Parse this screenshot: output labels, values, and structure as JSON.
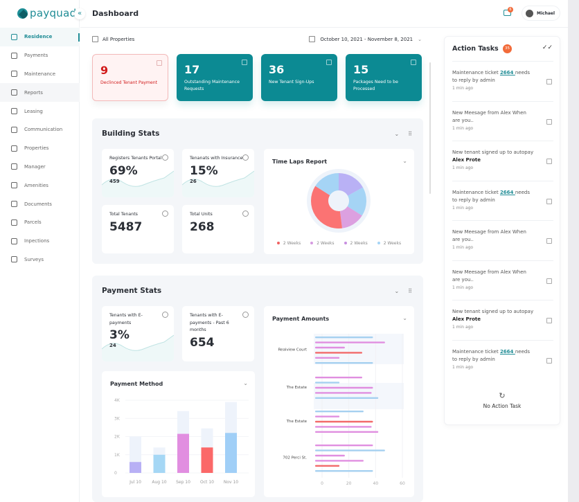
{
  "brand": {
    "name": "payquad",
    "accent": "#0c8a93"
  },
  "sidebar": {
    "items": [
      {
        "label": "Residence",
        "icon": "home-icon"
      },
      {
        "label": "Payments",
        "icon": "wallet-icon"
      },
      {
        "label": "Maintenance",
        "icon": "wrench-icon"
      },
      {
        "label": "Reports",
        "icon": "reports-icon"
      },
      {
        "label": "Leasing",
        "icon": "leasing-icon"
      },
      {
        "label": "Communication",
        "icon": "headset-icon"
      },
      {
        "label": "Properties",
        "icon": "properties-icon"
      },
      {
        "label": "Manager",
        "icon": "user-icon"
      },
      {
        "label": "Amenities",
        "icon": "amenities-icon"
      },
      {
        "label": "Documents",
        "icon": "documents-icon"
      },
      {
        "label": "Parcels",
        "icon": "parcel-icon"
      },
      {
        "label": "Inpections",
        "icon": "inspection-icon"
      },
      {
        "label": "Surveys",
        "icon": "survey-icon"
      }
    ],
    "active": "Residence"
  },
  "header": {
    "title": "Dashboard",
    "mail_badge": "6",
    "user": "Michael"
  },
  "filters": {
    "property": "All Properties",
    "date_range": "October 10, 2021 - November 8, 2021"
  },
  "kpis": [
    {
      "value": "9",
      "label": "Declinced Tenant Payment",
      "variant": "alert"
    },
    {
      "value": "17",
      "label": "Outstanding Maintenance Requests"
    },
    {
      "value": "36",
      "label": "New Tenant Sign-Ups"
    },
    {
      "value": "15",
      "label": "Packages Need to be Processed"
    }
  ],
  "building_stats": {
    "title": "Building Stats",
    "cards": [
      {
        "label": "Registers Tenants Portal",
        "value": "69%",
        "sub": "459"
      },
      {
        "label": "Tenanats with Insurance",
        "value": "15%",
        "sub": "26"
      },
      {
        "label": "Total Tenants",
        "value": "5487"
      },
      {
        "label": "Total Units",
        "value": "268"
      }
    ]
  },
  "payment_stats": {
    "title": "Payment Stats",
    "cards": [
      {
        "label": "Tenants with E-payments",
        "value": "3%",
        "sub": "24"
      },
      {
        "label": "Tenants with E-payments - Past 6 months",
        "value": "654"
      }
    ]
  },
  "chart_data": [
    {
      "type": "pie",
      "title": "Time Laps Report",
      "donut": true,
      "slices": [
        {
          "value": 17,
          "color": "#b9b1f5"
        },
        {
          "value": 17,
          "color": "#a5d4f5"
        },
        {
          "value": 14,
          "color": "#dca0e0"
        },
        {
          "value": 36,
          "color": "#fb7373"
        },
        {
          "value": 16,
          "color": "#a5d4f5"
        }
      ],
      "legend": [
        {
          "label": "2 Weeks",
          "color": "#f06262"
        },
        {
          "label": "2 Weeks",
          "color": "#d59ae0"
        },
        {
          "label": "2 Weeks",
          "color": "#c78fe0"
        },
        {
          "label": "2 Weeks",
          "color": "#a5d4f5"
        }
      ],
      "legend_position": "bottom"
    },
    {
      "type": "bar",
      "title": "Payment Method",
      "categories": [
        "Jul 10",
        "Aug 10",
        "Sep 10",
        "Oct 10",
        "Nov 10"
      ],
      "totals": [
        2000,
        1400,
        3400,
        2450,
        3900
      ],
      "values": [
        600,
        1000,
        2150,
        1400,
        2200
      ],
      "colors": [
        "#b8b0f5",
        "#a5d7f5",
        "#e18ee0",
        "#fb6868",
        "#a0cff7"
      ],
      "ylim": [
        0,
        4000
      ],
      "yticks": [
        "0",
        "1K",
        "2K",
        "3K",
        "4K"
      ]
    },
    {
      "type": "bar",
      "orientation": "horizontal",
      "title": "Payment Amounts",
      "categories": [
        "Realview Court",
        "The Estate",
        "The Estate",
        "702 Perci St."
      ],
      "groups": [
        [
          {
            "v": 38,
            "c": "#a5d0f0"
          },
          {
            "v": 47,
            "c": "#e08ee0"
          },
          {
            "v": 17,
            "c": "#e08ee0"
          },
          {
            "v": 30,
            "c": "#f26a6a"
          },
          {
            "v": 13,
            "c": "#e08ee0"
          },
          {
            "v": 38,
            "c": "#a5d0f0"
          }
        ],
        [
          {
            "v": 30,
            "c": "#e08ee0"
          },
          {
            "v": 13,
            "c": "#a5d0f0"
          },
          {
            "v": 38,
            "c": "#e08ee0"
          },
          {
            "v": 37,
            "c": "#e08ee0"
          },
          {
            "v": 42,
            "c": "#a5d0f0"
          }
        ],
        [
          {
            "v": 31,
            "c": "#a5d0f0"
          },
          {
            "v": 13,
            "c": "#e08ee0"
          },
          {
            "v": 38,
            "c": "#f26a6a"
          },
          {
            "v": 37,
            "c": "#e08ee0"
          },
          {
            "v": 42,
            "c": "#e08ee0"
          }
        ],
        [
          {
            "v": 38,
            "c": "#e08ee0"
          },
          {
            "v": 47,
            "c": "#a5d0f0"
          },
          {
            "v": 17,
            "c": "#e08ee0"
          },
          {
            "v": 31,
            "c": "#e08ee0"
          },
          {
            "v": 13,
            "c": "#f26a6a"
          },
          {
            "v": 38,
            "c": "#a5d0f0"
          }
        ]
      ],
      "xlim": [
        0,
        60
      ],
      "xticks": [
        "0",
        "20",
        "40",
        "60"
      ]
    }
  ],
  "tasks": {
    "title": "Action Tasks",
    "count": "35",
    "items": [
      {
        "pre": "Maintenance ticket ",
        "link": "2664 ",
        "post": "needs to reply by admin",
        "time": "1 min ago"
      },
      {
        "pre": "New Meesage from Alex When are you..",
        "time": "1 min ago"
      },
      {
        "pre": "New tenant signed up to autopay ",
        "bold": "Alex Prote",
        "time": "1 min ago"
      },
      {
        "pre": "Maintenance ticket ",
        "link": "2664 ",
        "post": "needs to reply by admin",
        "time": "1 min ago"
      },
      {
        "pre": "New Meesage from Alex When are you..",
        "time": "1 min ago"
      },
      {
        "pre": "New Meesage from Alex When are you..",
        "time": "1 min ago"
      },
      {
        "pre": "New tenant signed up to autopay ",
        "bold": "Alex Prote",
        "time": "1 min ago"
      },
      {
        "pre": "Maintenance ticket ",
        "link": "2664 ",
        "post": "needs to reply by admin",
        "time": "1 min ago"
      }
    ],
    "empty": "No Action Task"
  }
}
